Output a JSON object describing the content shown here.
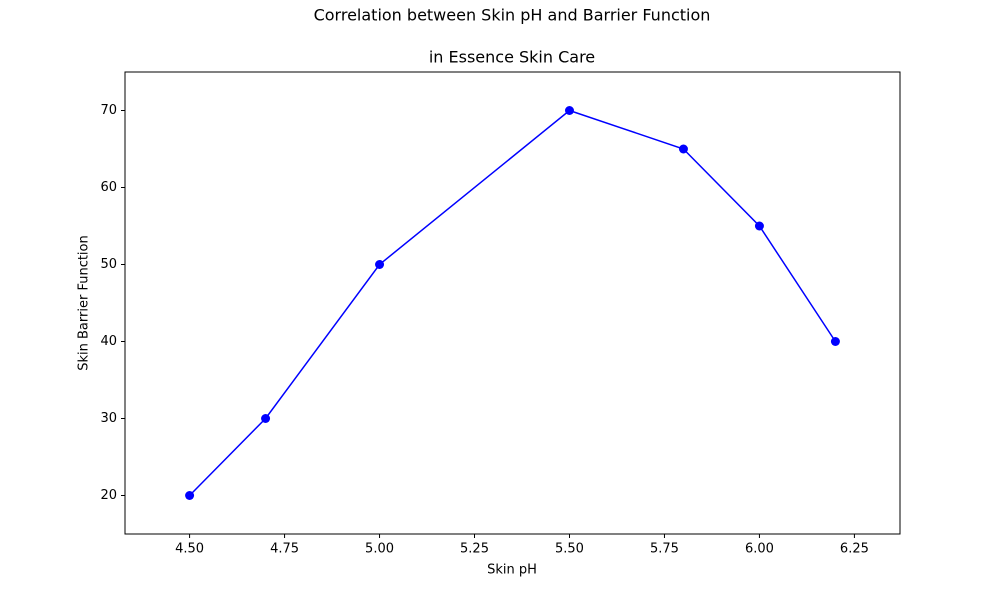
{
  "chart_data": {
    "type": "line",
    "title": [
      "Correlation between Skin pH and Barrier Function",
      "in Essence Skin Care"
    ],
    "x_label": "Skin pH",
    "y_label": "Skin Barrier Function",
    "x": [
      4.5,
      4.7,
      5.0,
      5.5,
      5.8,
      6.0,
      6.2
    ],
    "series": [
      {
        "color": "#0000ff",
        "values": [
          20,
          30,
          50,
          70,
          65,
          55,
          40
        ]
      }
    ],
    "xlim": [
      4.33,
      6.37
    ],
    "ylim": [
      15,
      75
    ],
    "xticks": [
      {
        "value": 4.5,
        "label": "4.50"
      },
      {
        "value": 4.75,
        "label": "4.75"
      },
      {
        "value": 5.0,
        "label": "5.00"
      },
      {
        "value": 5.25,
        "label": "5.25"
      },
      {
        "value": 5.5,
        "label": "5.50"
      },
      {
        "value": 5.75,
        "label": "5.75"
      },
      {
        "value": 6.0,
        "label": "6.00"
      },
      {
        "value": 6.25,
        "label": "6.25"
      }
    ],
    "yticks": [
      20,
      30,
      40,
      50,
      60,
      70
    ],
    "grid": false
  }
}
